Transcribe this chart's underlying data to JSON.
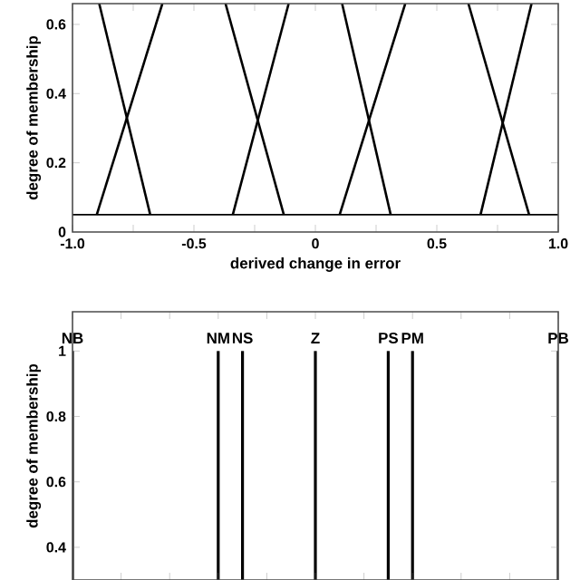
{
  "chart_data": [
    {
      "type": "line",
      "xlabel": "derived change in error",
      "ylabel": "degree of membership",
      "xlim": [
        -1.0,
        1.0
      ],
      "ylim": [
        0,
        0.66
      ],
      "xticks": [
        {
          "value": -1.0,
          "label": "-1.0"
        },
        {
          "value": -0.75,
          "label": null
        },
        {
          "value": -0.5,
          "label": "-0.5"
        },
        {
          "value": -0.25,
          "label": null
        },
        0,
        {
          "value": 0.25,
          "label": null
        },
        0.5,
        {
          "value": 0.75,
          "label": null
        },
        {
          "value": 1.0,
          "label": "1.0"
        }
      ],
      "yticks": [
        0,
        0.2,
        0.4,
        0.6
      ],
      "ref_lines": [
        {
          "axis": "y",
          "value": 0.05,
          "color": "#000000"
        }
      ],
      "series": [
        {
          "x": [
            -0.9,
            -0.63
          ],
          "values": [
            0.05,
            0.66
          ],
          "color": "#000000"
        },
        {
          "x": [
            -0.89,
            -0.68
          ],
          "values": [
            0.66,
            0.05
          ],
          "color": "#000000"
        },
        {
          "x": [
            -0.34,
            -0.11
          ],
          "values": [
            0.05,
            0.66
          ],
          "color": "#000000"
        },
        {
          "x": [
            -0.37,
            -0.13
          ],
          "values": [
            0.66,
            0.05
          ],
          "color": "#000000"
        },
        {
          "x": [
            0.1,
            0.37
          ],
          "values": [
            0.05,
            0.66
          ],
          "color": "#000000"
        },
        {
          "x": [
            0.11,
            0.31
          ],
          "values": [
            0.66,
            0.05
          ],
          "color": "#000000"
        },
        {
          "x": [
            0.68,
            0.89
          ],
          "values": [
            0.05,
            0.66
          ],
          "color": "#000000"
        },
        {
          "x": [
            0.63,
            0.88
          ],
          "values": [
            0.66,
            0.05
          ],
          "color": "#000000"
        }
      ]
    },
    {
      "type": "bar",
      "ylabel": "degree of membership",
      "xlim": [
        -1.0,
        1.0
      ],
      "ylim": [
        0.3,
        1.12
      ],
      "tick_labels": "y",
      "xticks": [
        {
          "value": -1.0,
          "label": null
        },
        {
          "value": -0.8,
          "label": null
        },
        {
          "value": -0.6,
          "label": null
        },
        {
          "value": -0.4,
          "label": null
        },
        {
          "value": -0.2,
          "label": null
        },
        {
          "value": 0,
          "label": null
        },
        {
          "value": 0.2,
          "label": null
        },
        {
          "value": 0.4,
          "label": null
        },
        {
          "value": 0.6,
          "label": null
        },
        {
          "value": 0.8,
          "label": null
        },
        {
          "value": 1.0,
          "label": null
        }
      ],
      "yticks": [
        0.4,
        0.6,
        0.8,
        1
      ],
      "x": [
        -1.0,
        -0.4,
        -0.3,
        0,
        0.3,
        0.4,
        1.0
      ],
      "values": [
        1,
        1,
        1,
        1,
        1,
        1,
        1
      ],
      "color": "#000000",
      "annotations": [
        {
          "text": "NB",
          "x": -1.0,
          "y": 1
        },
        {
          "text": "NM",
          "x": -0.4,
          "y": 1
        },
        {
          "text": "NS",
          "x": -0.3,
          "y": 1
        },
        {
          "text": "Z",
          "x": 0,
          "y": 1
        },
        {
          "text": "PS",
          "x": 0.3,
          "y": 1
        },
        {
          "text": "PM",
          "x": 0.4,
          "y": 1
        },
        {
          "text": "PB",
          "x": 1.0,
          "y": 1
        }
      ]
    }
  ]
}
